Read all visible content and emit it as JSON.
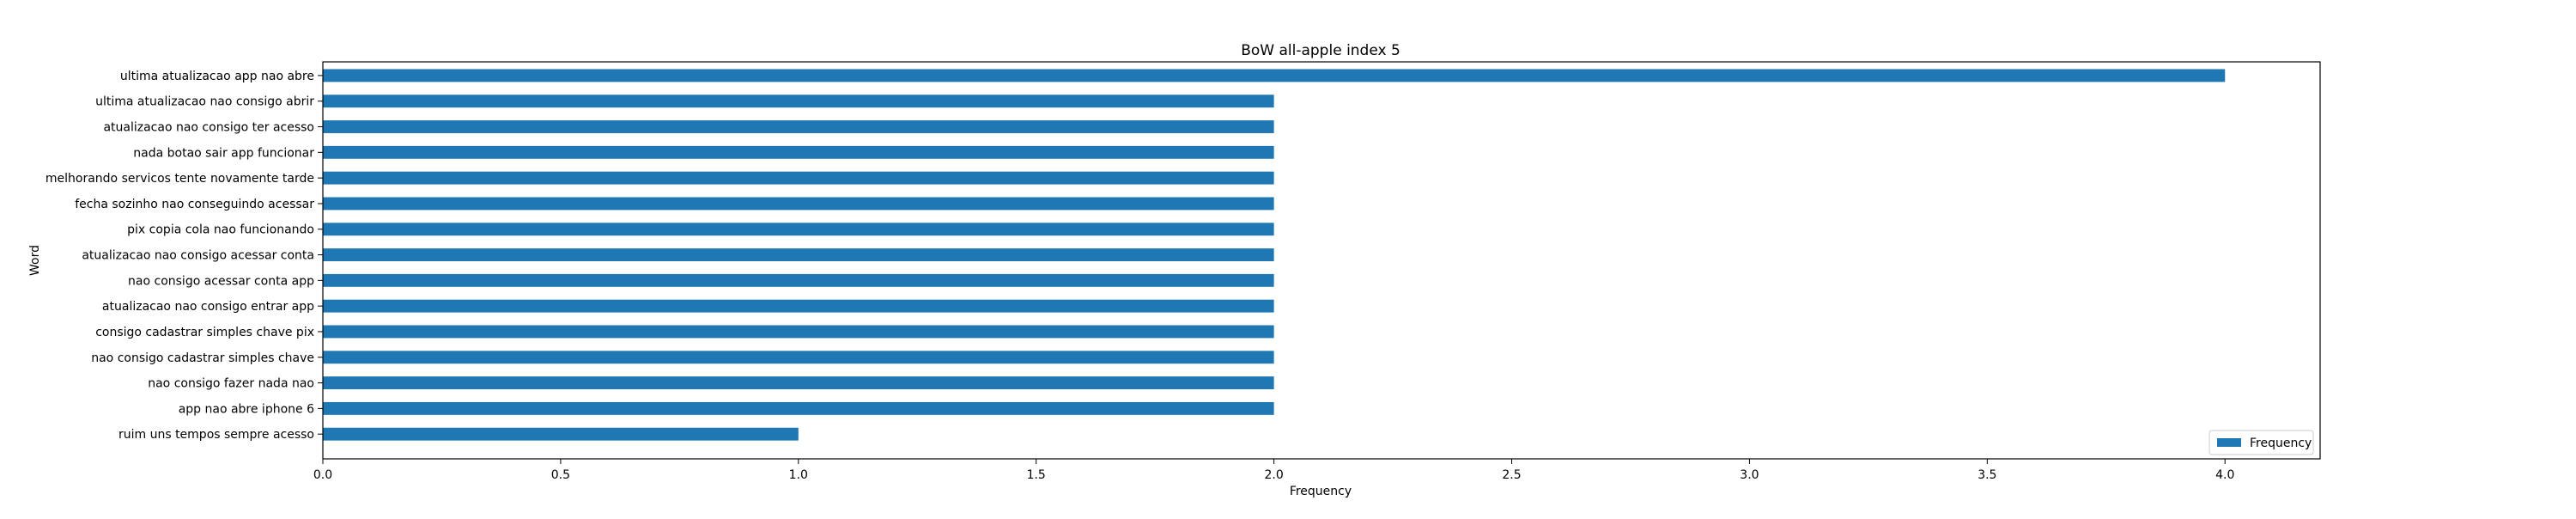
{
  "chart_data": {
    "type": "bar",
    "orientation": "horizontal",
    "title": "BoW all-apple index 5",
    "xlabel": "Frequency",
    "ylabel": "Word",
    "xlim": [
      0,
      4.2
    ],
    "xticks": [
      0.0,
      0.5,
      1.0,
      1.5,
      2.0,
      2.5,
      3.0,
      3.5,
      4.0
    ],
    "xtick_labels": [
      "0.0",
      "0.5",
      "1.0",
      "1.5",
      "2.0",
      "2.5",
      "3.0",
      "3.5",
      "4.0"
    ],
    "grid": false,
    "legend": {
      "placement": "bottom-right",
      "entries": [
        "Frequency"
      ]
    },
    "series": [
      {
        "name": "Frequency",
        "color": "#1f77b4",
        "values": [
          4,
          2,
          2,
          2,
          2,
          2,
          2,
          2,
          2,
          2,
          2,
          2,
          2,
          2,
          1
        ]
      }
    ],
    "categories": [
      "ultima atualizacao app nao abre",
      "ultima atualizacao nao consigo abrir",
      "atualizacao nao consigo ter acesso",
      "nada botao sair app funcionar",
      "melhorando servicos tente novamente tarde",
      "fecha sozinho nao conseguindo acessar",
      "pix copia cola nao funcionando",
      "atualizacao nao consigo acessar conta",
      "nao consigo acessar conta app",
      "atualizacao nao consigo entrar app",
      "consigo cadastrar simples chave pix",
      "nao consigo cadastrar simples chave",
      "nao consigo fazer nada nao",
      "app nao abre iphone 6",
      "ruim uns tempos sempre acesso"
    ]
  }
}
